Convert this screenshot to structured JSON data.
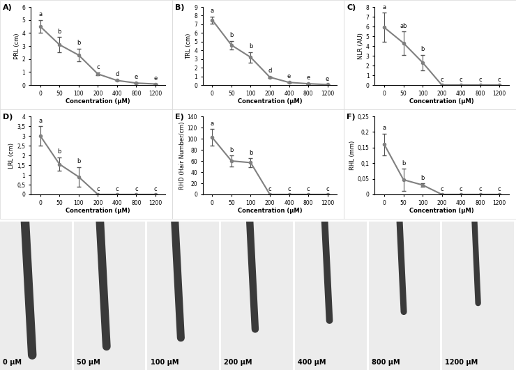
{
  "chart_data": [
    {
      "type": "line",
      "title": "A)",
      "x_label": "Concentration (µM)",
      "y_label": "PRL (cm)",
      "categories": [
        "0",
        "50",
        "100",
        "200",
        "400",
        "800",
        "1200"
      ],
      "values": [
        4.5,
        3.1,
        2.3,
        0.85,
        0.35,
        0.15,
        0.08
      ],
      "errors": [
        0.5,
        0.6,
        0.5,
        0.1,
        0.05,
        0.03,
        0.02
      ],
      "significance_letters": [
        "a",
        "b",
        "b",
        "c",
        "d",
        "e",
        "e"
      ],
      "color": "#808080",
      "marker": "o",
      "grid": false,
      "ylim": [
        0,
        6
      ],
      "yticks": [
        0,
        1,
        2,
        3,
        4,
        5,
        6
      ]
    },
    {
      "type": "line",
      "title": "B)",
      "x_label": "Concentration (µM)",
      "y_label": "TRL (cm)",
      "categories": [
        "0",
        "50",
        "100",
        "200",
        "400",
        "800",
        "1200"
      ],
      "values": [
        7.5,
        4.6,
        3.2,
        0.9,
        0.3,
        0.15,
        0.05
      ],
      "errors": [
        0.4,
        0.5,
        0.6,
        0.1,
        0.05,
        0.03,
        0.02
      ],
      "significance_letters": [
        "a",
        "b",
        "b",
        "d",
        "e",
        "e",
        "e"
      ],
      "color": "#808080",
      "marker": "o",
      "grid": false,
      "ylim": [
        0,
        9
      ],
      "yticks": [
        0,
        1,
        2,
        3,
        4,
        5,
        6,
        7,
        8,
        9
      ]
    },
    {
      "type": "line",
      "title": "C)",
      "x_label": "Concentration (µM)",
      "y_label": "NLR (AU)",
      "categories": [
        "0",
        "50",
        "100",
        "200",
        "400",
        "800",
        "1200"
      ],
      "values": [
        5.9,
        4.3,
        2.3,
        0,
        0,
        0,
        0
      ],
      "errors": [
        1.5,
        1.2,
        0.8,
        0,
        0,
        0,
        0
      ],
      "significance_letters": [
        "a",
        "ab",
        "b",
        "c",
        "c",
        "c",
        "c"
      ],
      "color": "#808080",
      "marker": "o",
      "grid": false,
      "ylim": [
        0,
        8
      ],
      "yticks": [
        0,
        1,
        2,
        3,
        4,
        5,
        6,
        7,
        8
      ]
    },
    {
      "type": "line",
      "title": "D)",
      "x_label": "Concentration (µM)",
      "y_label": "LRL (cm)",
      "categories": [
        "0",
        "50",
        "100",
        "200",
        "400",
        "800",
        "1200"
      ],
      "values": [
        3.0,
        1.55,
        0.9,
        0,
        0,
        0,
        0
      ],
      "errors": [
        0.5,
        0.35,
        0.5,
        0,
        0,
        0,
        0
      ],
      "significance_letters": [
        "a",
        "b",
        "b",
        "c",
        "c",
        "c",
        "c"
      ],
      "color": "#808080",
      "marker": "o",
      "grid": false,
      "ylim": [
        0,
        4
      ],
      "yticks": [
        0,
        {
          "value": 0.5,
          "label": "0,5"
        },
        1,
        {
          "value": 1.5,
          "label": "1,5"
        },
        2,
        {
          "value": 2.5,
          "label": "2,5"
        },
        3,
        {
          "value": 3.5,
          "label": "3,5"
        },
        4
      ]
    },
    {
      "type": "line",
      "title": "E)",
      "x_label": "Concentration (µM)",
      "y_label": "RHD (Hair Number/cm)",
      "categories": [
        "0",
        "50",
        "100",
        "200",
        "400",
        "800",
        "1200"
      ],
      "values": [
        102,
        60,
        57,
        0,
        0,
        0,
        0
      ],
      "errors": [
        15,
        10,
        8,
        0,
        0,
        0,
        0
      ],
      "significance_letters": [
        "a",
        "b",
        "b",
        "c",
        "c",
        "c",
        "c"
      ],
      "color": "#808080",
      "marker": "o",
      "grid": false,
      "ylim": [
        0,
        140
      ],
      "yticks": [
        0,
        20,
        40,
        60,
        80,
        100,
        120,
        140
      ]
    },
    {
      "type": "line",
      "title": "F)",
      "x_label": "Concentration (µM)",
      "y_label": "RHL (mm)",
      "categories": [
        "0",
        "50",
        "100",
        "200",
        "400",
        "800",
        "1200"
      ],
      "values": [
        0.16,
        0.047,
        0.03,
        0,
        0,
        0,
        0
      ],
      "errors": [
        0.035,
        0.035,
        0.005,
        0,
        0,
        0,
        0
      ],
      "significance_letters": [
        "a",
        "b",
        "b",
        "c",
        "c",
        "c",
        "c"
      ],
      "color": "#808080",
      "marker": "o",
      "grid": false,
      "ylim": [
        0,
        0.25
      ],
      "yticks": [
        0,
        {
          "value": 0.05,
          "label": "0,05"
        },
        {
          "value": 0.1,
          "label": "0,1"
        },
        {
          "value": 0.15,
          "label": "0,15"
        },
        {
          "value": 0.2,
          "label": "0,2"
        },
        {
          "value": 0.25,
          "label": "0,25"
        }
      ]
    }
  ],
  "image_strip": {
    "labels": [
      "0 µM",
      "50 µM",
      "100 µM",
      "200 µM",
      "400 µM",
      "800 µM",
      "1200 µM"
    ]
  }
}
